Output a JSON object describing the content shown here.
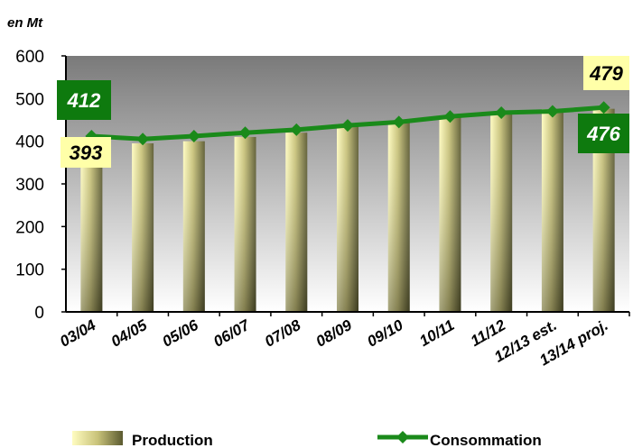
{
  "unit_label": "en Mt",
  "colors": {
    "consommation": "#1a8a1a",
    "bar_light": "#fffcc0",
    "bar_dark": "#5b5a30",
    "plot_top": "#7a7a7a",
    "plot_bottom": "#ffffff",
    "label_yellow_bg": "#ffffa8",
    "label_green_bg": "#0e7a0e"
  },
  "chart_data": {
    "type": "bar",
    "categories": [
      "03/04",
      "04/05",
      "05/06",
      "06/07",
      "07/08",
      "08/09",
      "09/10",
      "10/11",
      "11/12",
      "12/13 est.",
      "13/14 proj."
    ],
    "series": [
      {
        "name": "Production",
        "kind": "bar",
        "values": [
          393,
          395,
          400,
          410,
          420,
          440,
          445,
          460,
          470,
          475,
          476
        ]
      },
      {
        "name": "Consommation",
        "kind": "line",
        "values": [
          412,
          405,
          412,
          420,
          427,
          437,
          445,
          458,
          467,
          470,
          479
        ]
      }
    ],
    "ylim": [
      0,
      600
    ],
    "yticks": [
      0,
      100,
      200,
      300,
      400,
      500,
      600
    ],
    "grid": false,
    "legend": "bottom",
    "data_labels": [
      {
        "category": "03/04",
        "series": "Consommation",
        "text": "412"
      },
      {
        "category": "03/04",
        "series": "Production",
        "text": "393"
      },
      {
        "category": "13/14 proj.",
        "series": "Consommation",
        "text": "479"
      },
      {
        "category": "13/14 proj.",
        "series": "Production",
        "text": "476"
      }
    ]
  },
  "legend": {
    "production": "Production",
    "consommation": "Consommation"
  }
}
